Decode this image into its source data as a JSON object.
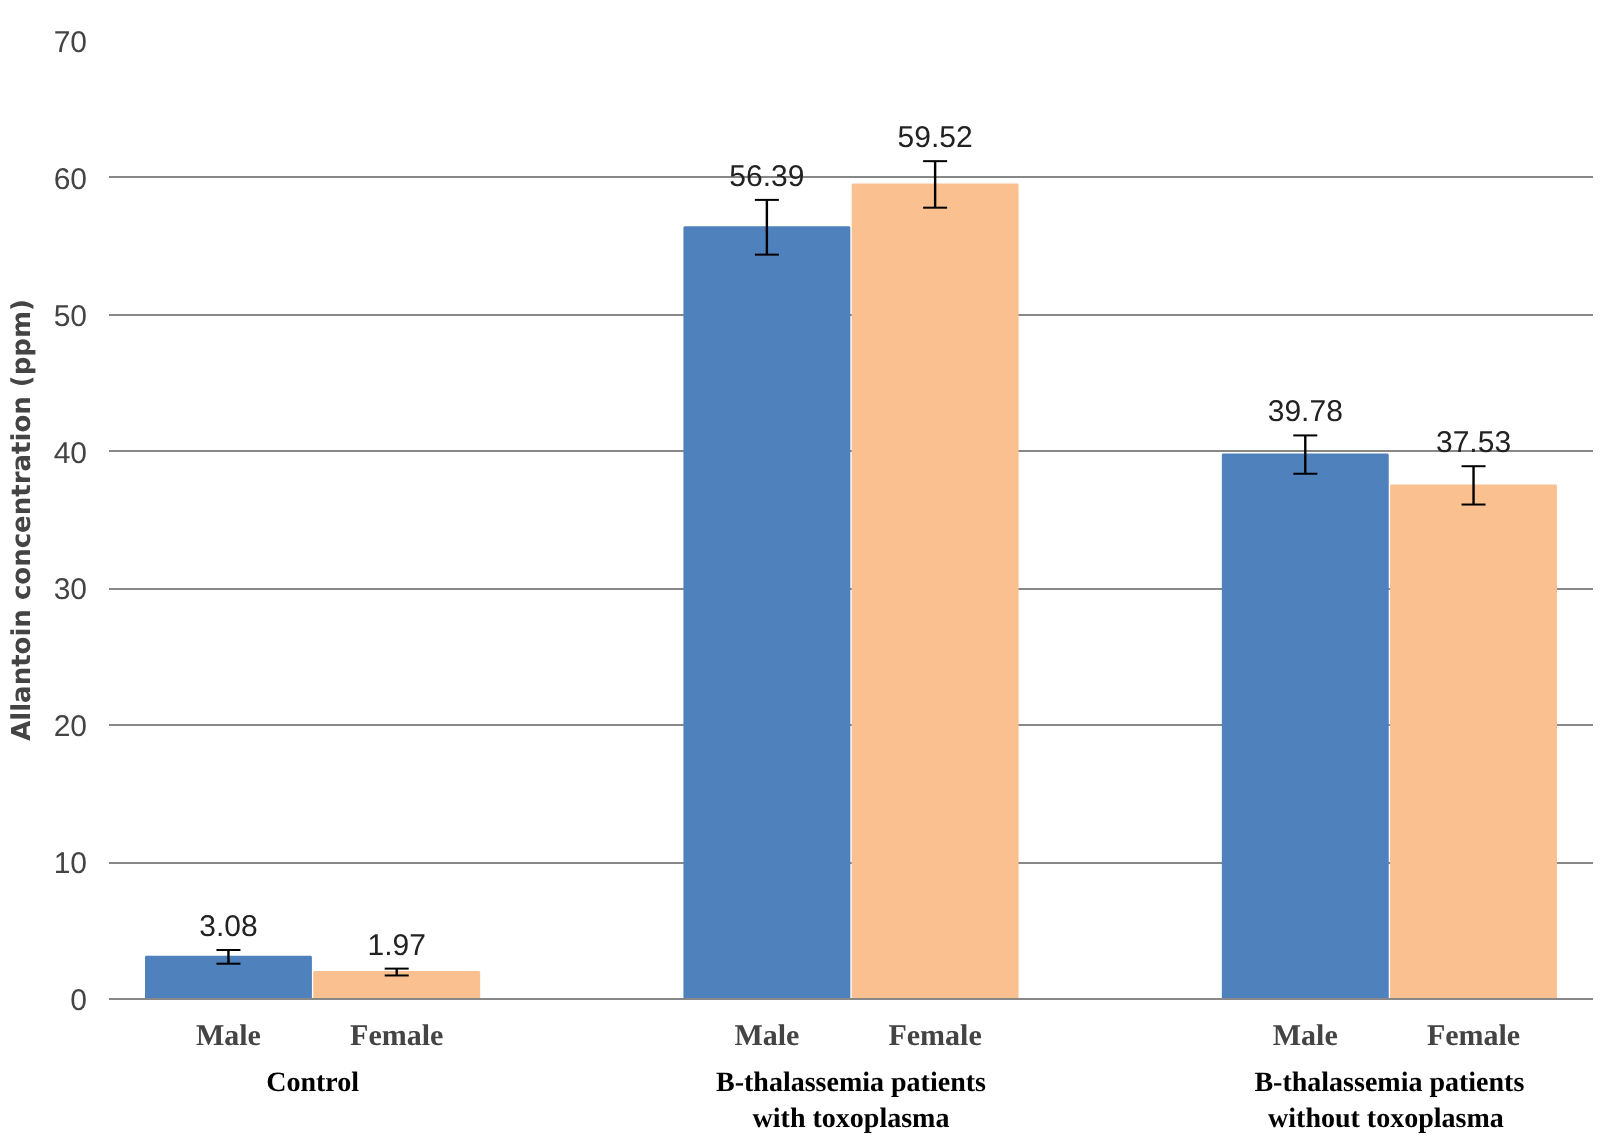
{
  "chart_data": {
    "type": "bar",
    "ylabel": "Allantoin concentration (ppm)",
    "categories": [
      "Control",
      "B-thalassemia patients\nwith toxoplasma",
      "B-thalassemia patients\nwithout  toxoplasma"
    ],
    "series": [
      {
        "name": "Male",
        "color": "#4f81bd",
        "values": [
          3.08,
          56.39,
          39.78
        ],
        "errors": [
          0.5,
          2.0,
          1.4
        ]
      },
      {
        "name": "Female",
        "color": "#fac090",
        "values": [
          1.97,
          59.52,
          37.53
        ],
        "errors": [
          0.25,
          1.7,
          1.4
        ]
      }
    ],
    "ylim": [
      0,
      70
    ],
    "yticks": [
      0,
      10,
      20,
      30,
      40,
      50,
      60,
      70
    ],
    "grid": "y",
    "data_labels": true
  }
}
